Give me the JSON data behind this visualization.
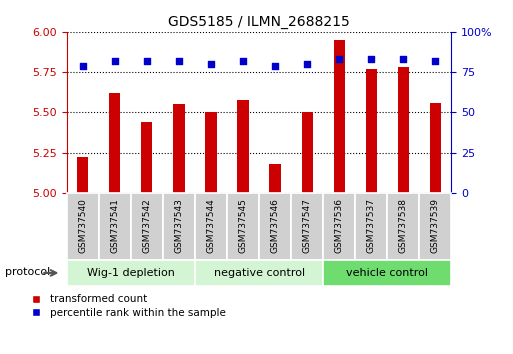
{
  "title": "GDS5185 / ILMN_2688215",
  "samples": [
    "GSM737540",
    "GSM737541",
    "GSM737542",
    "GSM737543",
    "GSM737544",
    "GSM737545",
    "GSM737546",
    "GSM737547",
    "GSM737536",
    "GSM737537",
    "GSM737538",
    "GSM737539"
  ],
  "bar_values": [
    5.22,
    5.62,
    5.44,
    5.55,
    5.5,
    5.58,
    5.18,
    5.5,
    5.95,
    5.77,
    5.78,
    5.56
  ],
  "percentile_values": [
    79,
    82,
    82,
    82,
    80,
    82,
    79,
    80,
    83,
    83,
    83,
    82
  ],
  "groups": [
    {
      "label": "Wig-1 depletion",
      "start": 0,
      "end": 4
    },
    {
      "label": "negative control",
      "start": 4,
      "end": 8
    },
    {
      "label": "vehicle control",
      "start": 8,
      "end": 12
    }
  ],
  "group_colors_light": [
    "#d4f5d4",
    "#d4f5d4",
    "#6edc6e"
  ],
  "bar_color": "#cc0000",
  "percentile_color": "#0000cc",
  "ylim_left": [
    5.0,
    6.0
  ],
  "ylim_right": [
    0,
    100
  ],
  "yticks_left": [
    5.0,
    5.25,
    5.5,
    5.75,
    6.0
  ],
  "yticks_right": [
    0,
    25,
    50,
    75,
    100
  ],
  "ylabel_left_color": "#cc0000",
  "ylabel_right_color": "#0000cc",
  "protocol_label": "protocol",
  "legend_items": [
    {
      "label": "transformed count",
      "color": "#cc0000"
    },
    {
      "label": "percentile rank within the sample",
      "color": "#0000cc"
    }
  ]
}
